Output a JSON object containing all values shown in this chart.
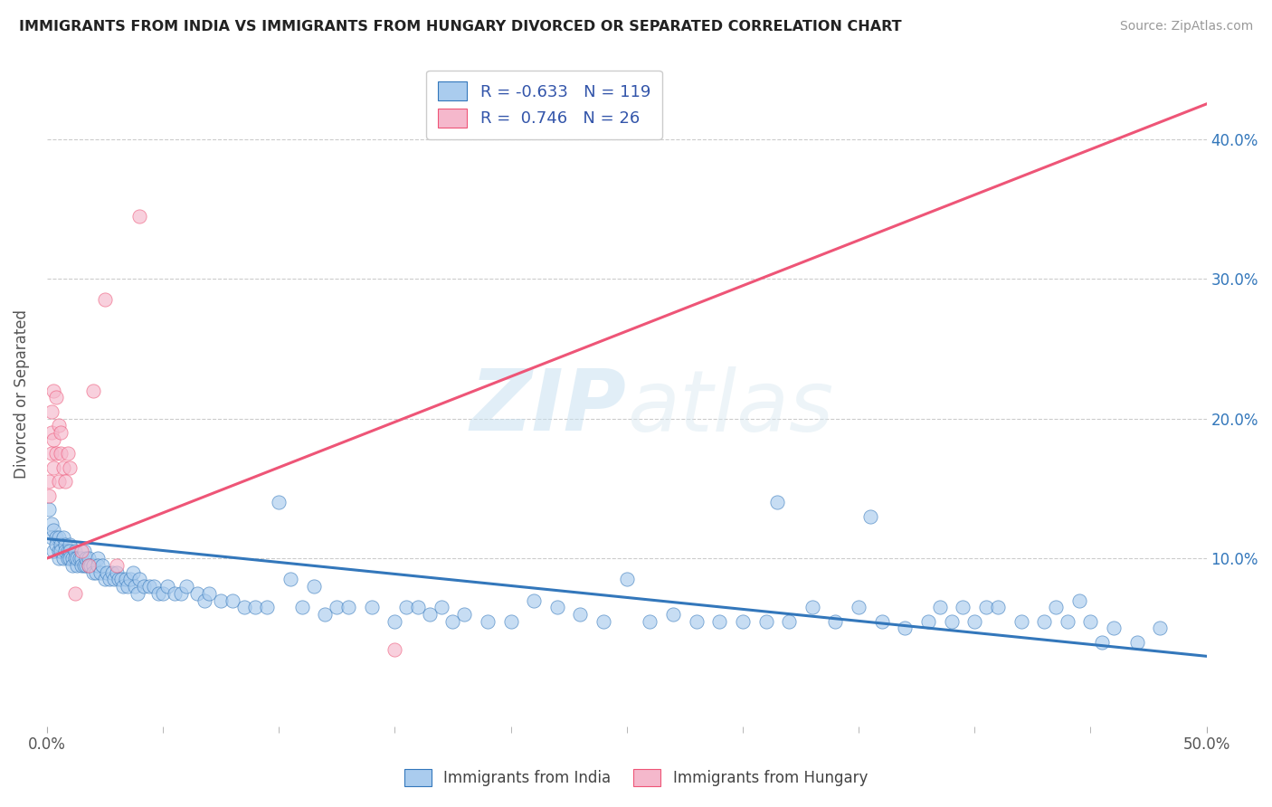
{
  "title": "IMMIGRANTS FROM INDIA VS IMMIGRANTS FROM HUNGARY DIVORCED OR SEPARATED CORRELATION CHART",
  "source": "Source: ZipAtlas.com",
  "ylabel": "Divorced or Separated",
  "right_yticks": [
    "40.0%",
    "30.0%",
    "20.0%",
    "10.0%"
  ],
  "right_ytick_vals": [
    0.4,
    0.3,
    0.2,
    0.1
  ],
  "xlim": [
    0.0,
    0.5
  ],
  "ylim": [
    -0.02,
    0.455
  ],
  "watermark_zip": "ZIP",
  "watermark_atlas": "atlas",
  "blue_color": "#aaccee",
  "pink_color": "#f5b8cc",
  "blue_line_color": "#3377bb",
  "pink_line_color": "#ee5577",
  "blue_scatter": [
    [
      0.001,
      0.135
    ],
    [
      0.002,
      0.125
    ],
    [
      0.002,
      0.115
    ],
    [
      0.003,
      0.12
    ],
    [
      0.003,
      0.105
    ],
    [
      0.004,
      0.115
    ],
    [
      0.004,
      0.11
    ],
    [
      0.005,
      0.115
    ],
    [
      0.005,
      0.105
    ],
    [
      0.005,
      0.1
    ],
    [
      0.006,
      0.11
    ],
    [
      0.006,
      0.105
    ],
    [
      0.007,
      0.1
    ],
    [
      0.007,
      0.115
    ],
    [
      0.008,
      0.11
    ],
    [
      0.008,
      0.105
    ],
    [
      0.009,
      0.105
    ],
    [
      0.009,
      0.1
    ],
    [
      0.01,
      0.11
    ],
    [
      0.01,
      0.105
    ],
    [
      0.01,
      0.1
    ],
    [
      0.011,
      0.1
    ],
    [
      0.011,
      0.095
    ],
    [
      0.012,
      0.105
    ],
    [
      0.012,
      0.1
    ],
    [
      0.013,
      0.095
    ],
    [
      0.013,
      0.1
    ],
    [
      0.014,
      0.1
    ],
    [
      0.015,
      0.1
    ],
    [
      0.015,
      0.095
    ],
    [
      0.016,
      0.105
    ],
    [
      0.016,
      0.095
    ],
    [
      0.017,
      0.095
    ],
    [
      0.017,
      0.1
    ],
    [
      0.018,
      0.1
    ],
    [
      0.018,
      0.095
    ],
    [
      0.019,
      0.095
    ],
    [
      0.02,
      0.095
    ],
    [
      0.02,
      0.09
    ],
    [
      0.021,
      0.09
    ],
    [
      0.022,
      0.1
    ],
    [
      0.022,
      0.095
    ],
    [
      0.023,
      0.09
    ],
    [
      0.024,
      0.095
    ],
    [
      0.025,
      0.085
    ],
    [
      0.026,
      0.09
    ],
    [
      0.027,
      0.085
    ],
    [
      0.028,
      0.09
    ],
    [
      0.029,
      0.085
    ],
    [
      0.03,
      0.09
    ],
    [
      0.031,
      0.085
    ],
    [
      0.032,
      0.085
    ],
    [
      0.033,
      0.08
    ],
    [
      0.034,
      0.085
    ],
    [
      0.035,
      0.08
    ],
    [
      0.036,
      0.085
    ],
    [
      0.037,
      0.09
    ],
    [
      0.038,
      0.08
    ],
    [
      0.039,
      0.075
    ],
    [
      0.04,
      0.085
    ],
    [
      0.042,
      0.08
    ],
    [
      0.044,
      0.08
    ],
    [
      0.046,
      0.08
    ],
    [
      0.048,
      0.075
    ],
    [
      0.05,
      0.075
    ],
    [
      0.052,
      0.08
    ],
    [
      0.055,
      0.075
    ],
    [
      0.058,
      0.075
    ],
    [
      0.06,
      0.08
    ],
    [
      0.065,
      0.075
    ],
    [
      0.068,
      0.07
    ],
    [
      0.07,
      0.075
    ],
    [
      0.075,
      0.07
    ],
    [
      0.08,
      0.07
    ],
    [
      0.085,
      0.065
    ],
    [
      0.09,
      0.065
    ],
    [
      0.095,
      0.065
    ],
    [
      0.1,
      0.14
    ],
    [
      0.105,
      0.085
    ],
    [
      0.11,
      0.065
    ],
    [
      0.115,
      0.08
    ],
    [
      0.12,
      0.06
    ],
    [
      0.125,
      0.065
    ],
    [
      0.13,
      0.065
    ],
    [
      0.14,
      0.065
    ],
    [
      0.15,
      0.055
    ],
    [
      0.155,
      0.065
    ],
    [
      0.16,
      0.065
    ],
    [
      0.165,
      0.06
    ],
    [
      0.17,
      0.065
    ],
    [
      0.175,
      0.055
    ],
    [
      0.18,
      0.06
    ],
    [
      0.19,
      0.055
    ],
    [
      0.2,
      0.055
    ],
    [
      0.21,
      0.07
    ],
    [
      0.22,
      0.065
    ],
    [
      0.23,
      0.06
    ],
    [
      0.24,
      0.055
    ],
    [
      0.25,
      0.085
    ],
    [
      0.26,
      0.055
    ],
    [
      0.27,
      0.06
    ],
    [
      0.28,
      0.055
    ],
    [
      0.29,
      0.055
    ],
    [
      0.3,
      0.055
    ],
    [
      0.31,
      0.055
    ],
    [
      0.315,
      0.14
    ],
    [
      0.32,
      0.055
    ],
    [
      0.33,
      0.065
    ],
    [
      0.34,
      0.055
    ],
    [
      0.35,
      0.065
    ],
    [
      0.355,
      0.13
    ],
    [
      0.36,
      0.055
    ],
    [
      0.37,
      0.05
    ],
    [
      0.38,
      0.055
    ],
    [
      0.385,
      0.065
    ],
    [
      0.39,
      0.055
    ],
    [
      0.395,
      0.065
    ],
    [
      0.4,
      0.055
    ],
    [
      0.405,
      0.065
    ],
    [
      0.41,
      0.065
    ],
    [
      0.42,
      0.055
    ],
    [
      0.43,
      0.055
    ],
    [
      0.435,
      0.065
    ],
    [
      0.44,
      0.055
    ],
    [
      0.445,
      0.07
    ],
    [
      0.45,
      0.055
    ],
    [
      0.455,
      0.04
    ],
    [
      0.46,
      0.05
    ],
    [
      0.47,
      0.04
    ],
    [
      0.48,
      0.05
    ]
  ],
  "pink_scatter": [
    [
      0.001,
      0.145
    ],
    [
      0.001,
      0.155
    ],
    [
      0.002,
      0.175
    ],
    [
      0.002,
      0.19
    ],
    [
      0.002,
      0.205
    ],
    [
      0.003,
      0.185
    ],
    [
      0.003,
      0.165
    ],
    [
      0.003,
      0.22
    ],
    [
      0.004,
      0.175
    ],
    [
      0.004,
      0.215
    ],
    [
      0.005,
      0.195
    ],
    [
      0.005,
      0.155
    ],
    [
      0.006,
      0.175
    ],
    [
      0.006,
      0.19
    ],
    [
      0.007,
      0.165
    ],
    [
      0.008,
      0.155
    ],
    [
      0.009,
      0.175
    ],
    [
      0.01,
      0.165
    ],
    [
      0.012,
      0.075
    ],
    [
      0.015,
      0.105
    ],
    [
      0.018,
      0.095
    ],
    [
      0.02,
      0.22
    ],
    [
      0.025,
      0.285
    ],
    [
      0.03,
      0.095
    ],
    [
      0.04,
      0.345
    ],
    [
      0.15,
      0.035
    ]
  ],
  "blue_trend_x": [
    0.0,
    0.5
  ],
  "blue_trend_y": [
    0.114,
    0.03
  ],
  "pink_trend_x": [
    0.0,
    0.5
  ],
  "pink_trend_y": [
    0.1,
    0.425
  ]
}
